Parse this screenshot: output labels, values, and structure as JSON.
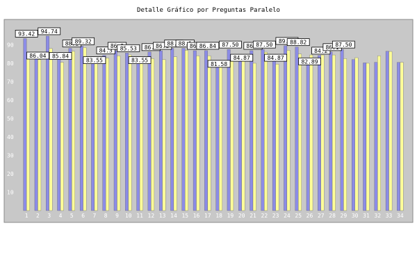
{
  "chart_data": {
    "type": "bar",
    "title": "Detalle Gráfico por Preguntas Paralelo",
    "xlabel": "",
    "ylabel": "",
    "ylim": [
      0,
      100
    ],
    "y_ticks": [
      10,
      20,
      30,
      40,
      50,
      60,
      70,
      80,
      90
    ],
    "grid": false,
    "legend": "none",
    "categories": [
      "1",
      "2",
      "3",
      "4",
      "5",
      "6",
      "7",
      "8",
      "9",
      "10",
      "11",
      "12",
      "13",
      "14",
      "15",
      "16",
      "17",
      "18",
      "19",
      "20",
      "21",
      "22",
      "23",
      "24",
      "25",
      "26",
      "27",
      "28",
      "29",
      "30",
      "31",
      "32",
      "33",
      "34"
    ],
    "series": [
      {
        "values": [
          93.42,
          86.04,
          94.74,
          85.84,
          88.1,
          89.32,
          83.55,
          84.3,
          86.8,
          85.53,
          83.55,
          86.1,
          86.8,
          88.1,
          88.1,
          86.8,
          86.84,
          81.58,
          87.5,
          84.87,
          86.8,
          87.5,
          84.87,
          89.47,
          88.82,
          82.89,
          84.2,
          86.1,
          87.5,
          82.0,
          80.2,
          80.5,
          86.5,
          80.5
        ],
        "color": "#8c8ce6"
      },
      {
        "values": [
          85.5,
          82.0,
          88.0,
          80.5,
          86.5,
          88.5,
          80.5,
          82.8,
          84.0,
          84.5,
          80.0,
          82.5,
          82.0,
          83.5,
          87.0,
          84.0,
          84.0,
          79.5,
          82.0,
          82.0,
          80.0,
          86.0,
          79.5,
          87.0,
          85.0,
          84.5,
          84.5,
          84.5,
          82.5,
          83.0,
          80.0,
          84.0,
          86.4,
          80.5
        ],
        "color": "#ffff99"
      }
    ],
    "value_labels": [
      "93.42",
      "86.04",
      "94.74",
      "85.84",
      "88.1",
      "89.32",
      "83.55",
      "84.3",
      "86.8",
      "85.53",
      "83.55",
      "86.1",
      "86.8",
      "88.1",
      "88.1",
      "86.8",
      "86.84",
      "81.58",
      "87.50",
      "84.87",
      "86.8",
      "87.50",
      "84.87",
      "89.47",
      "88.82",
      "82.89",
      "84.2",
      "86.1",
      "87.50",
      "",
      "",
      "",
      "",
      ""
    ]
  }
}
